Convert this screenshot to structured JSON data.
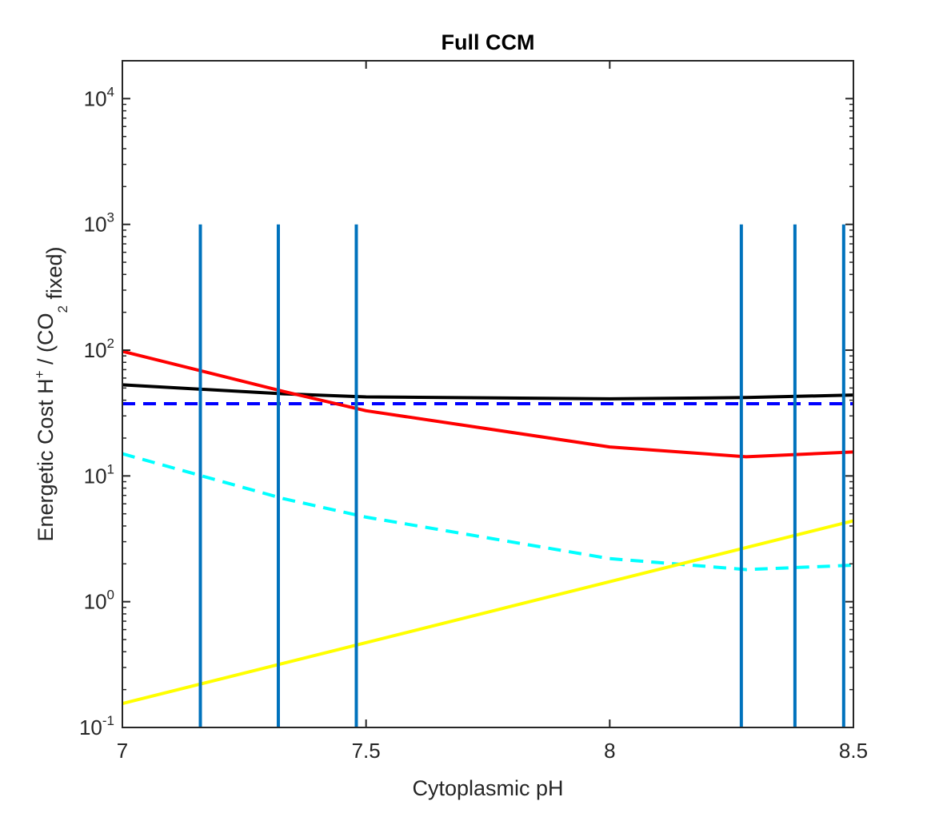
{
  "chart_data": {
    "type": "line",
    "title": "Full CCM",
    "xlabel": "Cytoplasmic pH",
    "ylabel": "Energetic Cost H+ / (CO2 fixed)",
    "xlim": [
      7,
      8.5
    ],
    "ylim": [
      0.1,
      20000
    ],
    "yscale": "log",
    "grid": false,
    "xticks": [
      7,
      7.5,
      8,
      8.5
    ],
    "xtick_labels": [
      "7",
      "7.5",
      "8",
      "8.5"
    ],
    "yticks": [
      0.1,
      1,
      10,
      100,
      1000,
      10000
    ],
    "ytick_labels": [
      {
        "base": "10",
        "exp": "-1"
      },
      {
        "base": "10",
        "exp": "0"
      },
      {
        "base": "10",
        "exp": "1"
      },
      {
        "base": "10",
        "exp": "2"
      },
      {
        "base": "10",
        "exp": "3"
      },
      {
        "base": "10",
        "exp": "4"
      }
    ],
    "series": [
      {
        "color": "#000000",
        "dash": "solid",
        "x": [
          7,
          7.33,
          7.5,
          8,
          8.28,
          8.5
        ],
        "y": [
          53,
          45,
          42.5,
          41,
          42,
          44
        ]
      },
      {
        "color": "#0000ff",
        "dash": "dashed",
        "x": [
          7,
          8.5
        ],
        "y": [
          37.5,
          37.5
        ]
      },
      {
        "color": "#ff0000",
        "dash": "solid",
        "x": [
          7,
          7.33,
          7.5,
          8,
          8.28,
          8.5
        ],
        "y": [
          98,
          47,
          33,
          17,
          14.2,
          15.5
        ]
      },
      {
        "color": "#00ffff",
        "dash": "dashed",
        "x": [
          7,
          7.33,
          7.5,
          8,
          8.28,
          8.5
        ],
        "y": [
          15,
          6.6,
          4.7,
          2.2,
          1.8,
          1.95
        ]
      },
      {
        "color": "#ffff00",
        "dash": "solid",
        "x": [
          7,
          8.5
        ],
        "y": [
          0.155,
          4.4
        ]
      }
    ],
    "vlines": {
      "color": "#0072bd",
      "x": [
        7.16,
        7.32,
        7.48,
        8.27,
        8.38,
        8.48
      ],
      "ymin": 0.1,
      "ymax": 1000
    }
  }
}
